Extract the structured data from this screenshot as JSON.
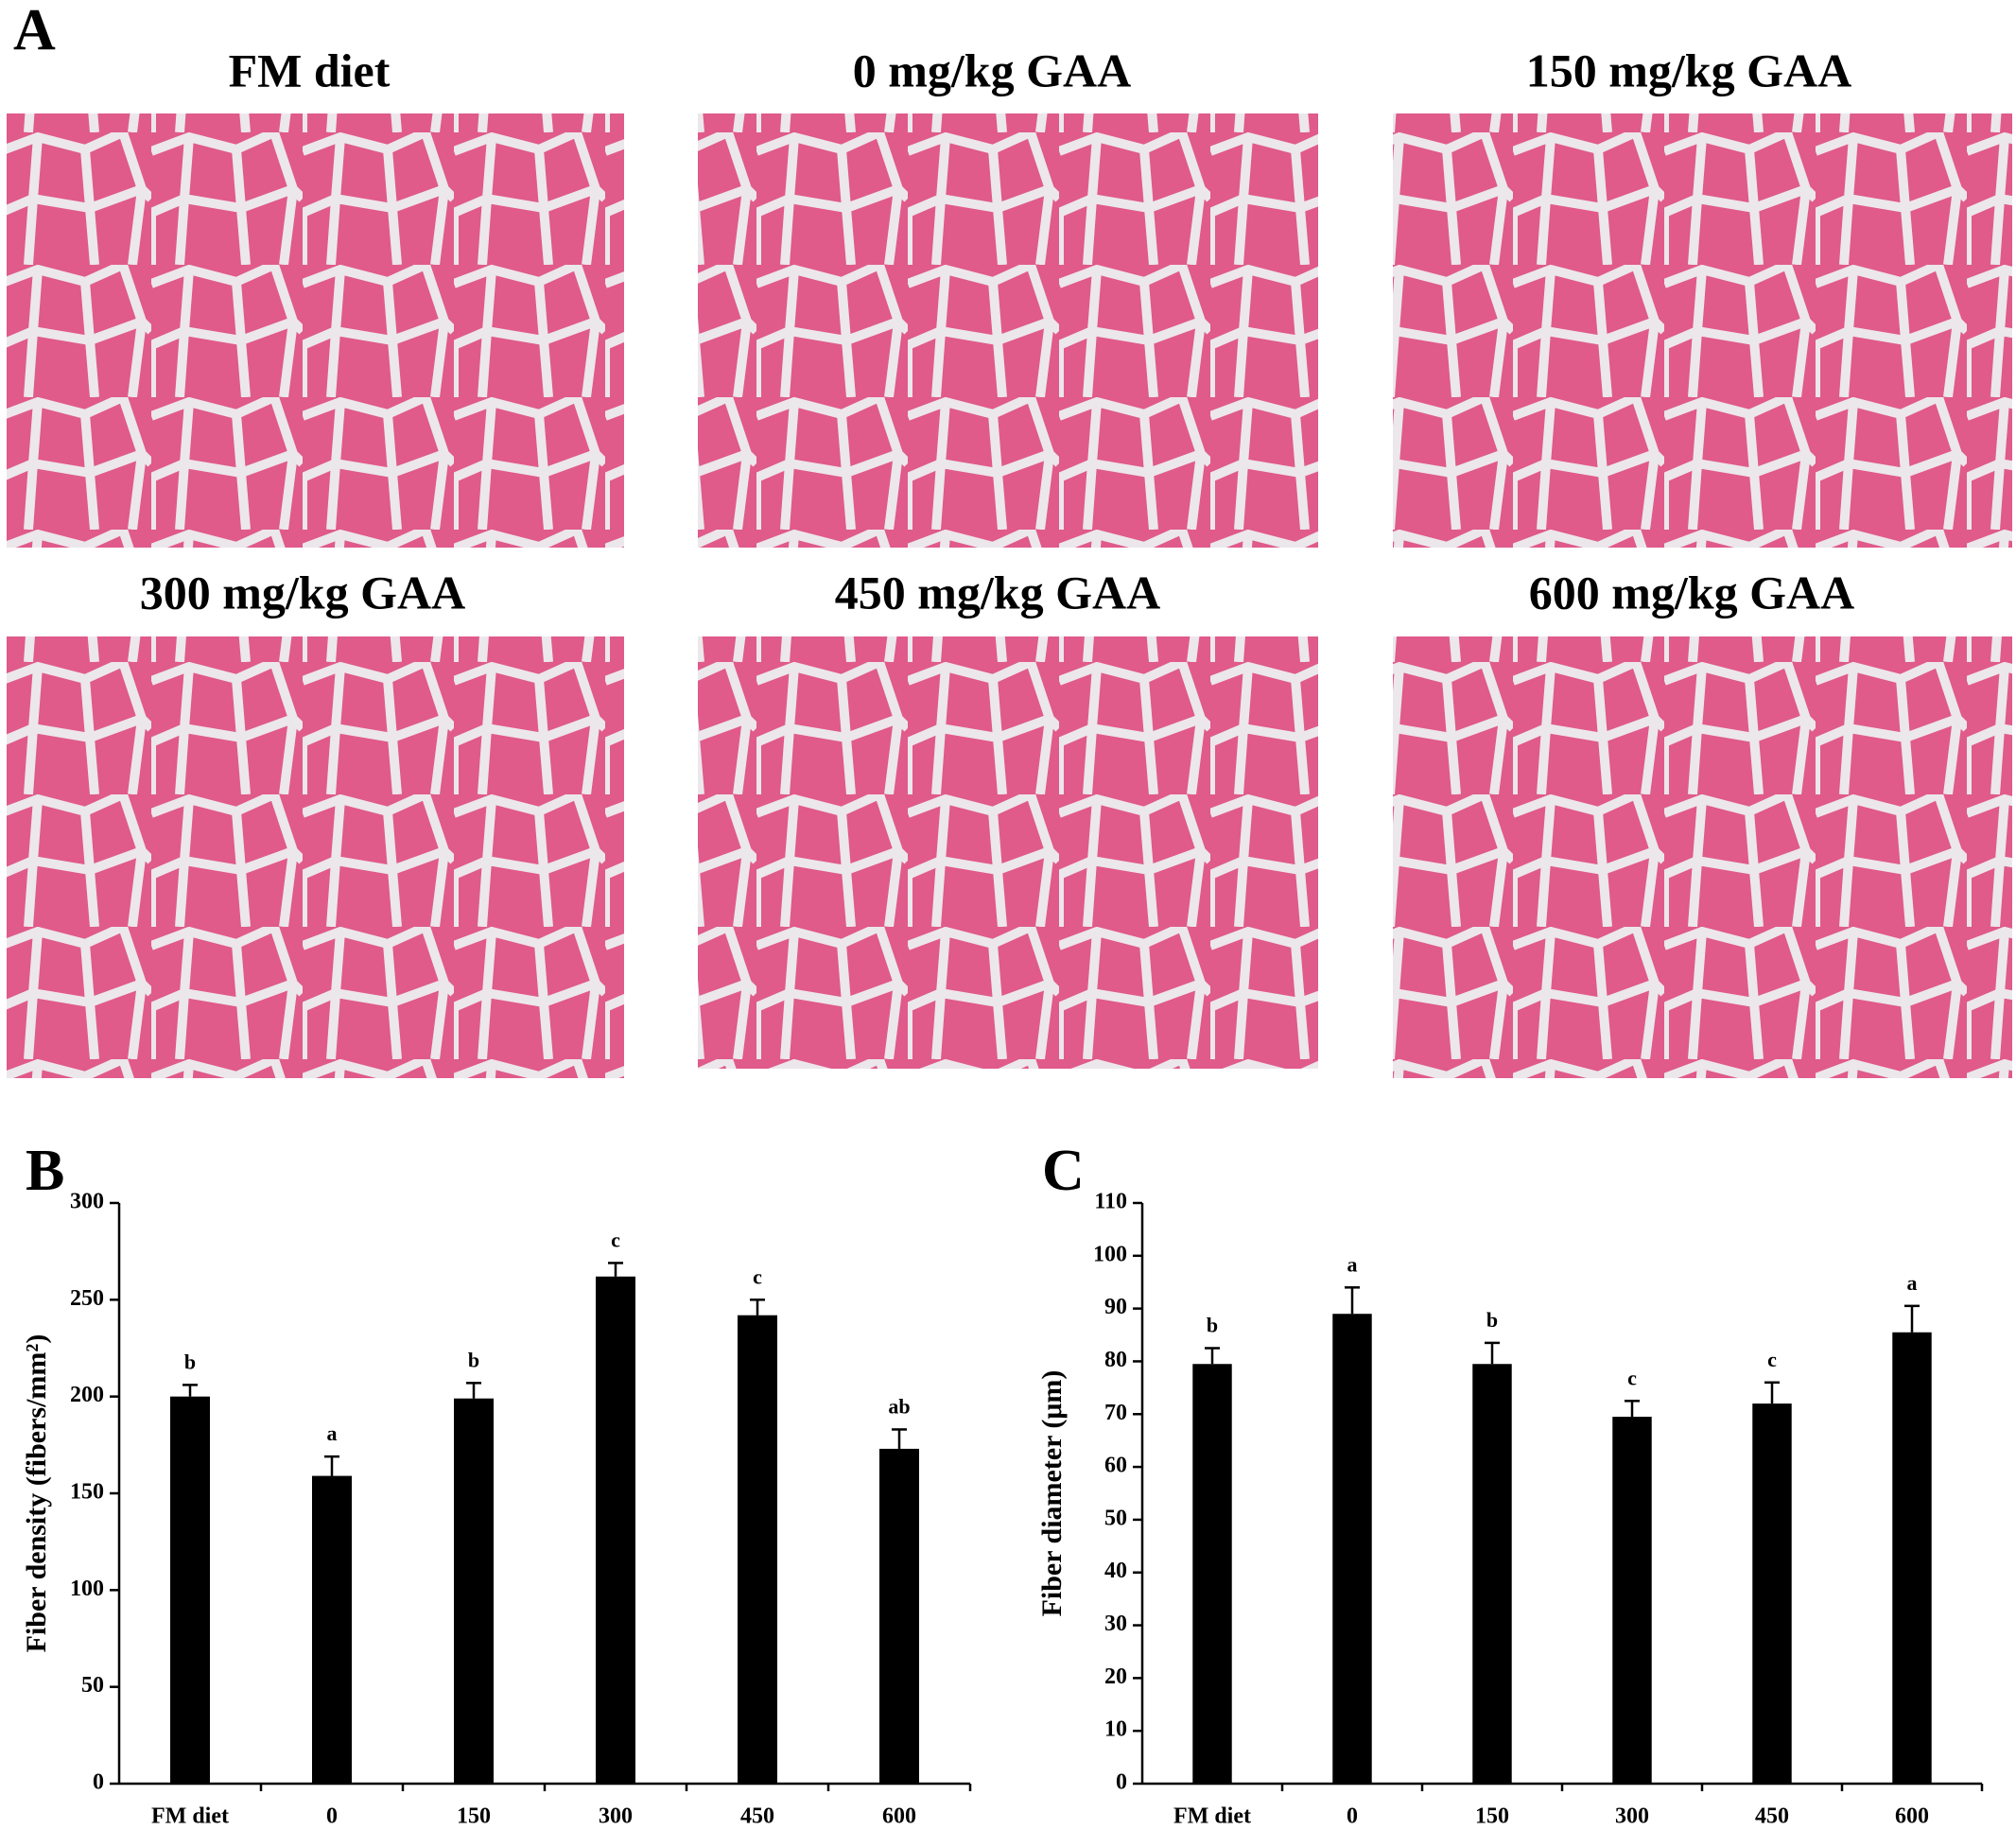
{
  "panel_a": {
    "label": "A",
    "titles": [
      "FM diet",
      "0 mg/kg GAA",
      "150 mg/kg GAA",
      "300 mg/kg GAA",
      "450 mg/kg GAA",
      "600 mg/kg GAA"
    ]
  },
  "chart_data": [
    {
      "type": "bar",
      "panel_label": "B",
      "y_label": "Fiber density (fibers/mm²)",
      "categories": [
        "FM diet",
        "0",
        "150",
        "300",
        "450",
        "600"
      ],
      "values": [
        200,
        159,
        199,
        262,
        242,
        173
      ],
      "errors": [
        6,
        10,
        8,
        7,
        8,
        10
      ],
      "significance": [
        "b",
        "a",
        "b",
        "c",
        "c",
        "ab"
      ],
      "color": "#000000",
      "ylim": [
        0,
        300
      ],
      "yticks": [
        0,
        50,
        100,
        150,
        200,
        250,
        300
      ]
    },
    {
      "type": "bar",
      "panel_label": "C",
      "y_label": "Fiber diameter (μm)",
      "categories": [
        "FM diet",
        "0",
        "150",
        "300",
        "450",
        "600"
      ],
      "values": [
        79.5,
        89,
        79.5,
        69.5,
        72,
        85.5
      ],
      "errors": [
        3,
        5,
        4,
        3,
        4,
        5
      ],
      "significance": [
        "b",
        "a",
        "b",
        "c",
        "c",
        "a"
      ],
      "color": "#000000",
      "ylim": [
        0,
        110
      ],
      "yticks": [
        0,
        10,
        20,
        30,
        40,
        50,
        60,
        70,
        80,
        90,
        100,
        110
      ]
    }
  ]
}
